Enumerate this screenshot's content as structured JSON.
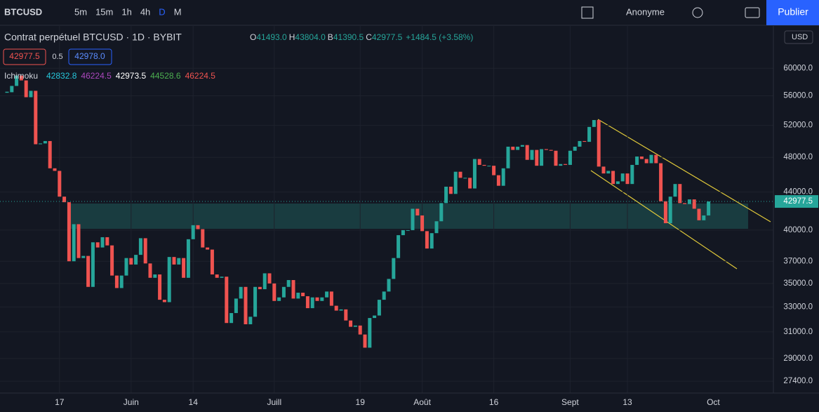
{
  "toolbar": {
    "symbol": "BTCUSD",
    "intervals": [
      "5m",
      "15m",
      "1h",
      "4h",
      "D",
      "M"
    ],
    "user": "Anonyme",
    "publish": "Publier"
  },
  "legend": {
    "title": "Contrat perpétuel BTCUSD · 1D · BYBIT",
    "ohlc": [
      {
        "k": "O",
        "v": "41493.0"
      },
      {
        "k": "H",
        "v": "43804.0"
      },
      {
        "k": "B",
        "v": "41390.5"
      },
      {
        "k": "C",
        "v": "42977.5"
      }
    ],
    "change": "+1484.5 (+3.58%)",
    "sell": "42977.5",
    "spread": "0.5",
    "buy": "42978.0",
    "indicator": "Ichimoku",
    "indicator_values": [
      "42832.8",
      "46224.5",
      "42973.5",
      "44528.6",
      "46224.5"
    ],
    "currency": "USD"
  },
  "chart_data": {
    "type": "candlestick",
    "log": true,
    "up_color": "#26a69a",
    "down_color": "#ef5350",
    "categories": [
      null,
      null,
      null,
      null,
      null,
      null,
      null,
      null,
      null,
      null,
      null,
      "17",
      null,
      null,
      null,
      null,
      null,
      null,
      null,
      null,
      null,
      null,
      null,
      null,
      null,
      null,
      "Juin",
      null,
      null,
      null,
      null,
      null,
      null,
      null,
      null,
      null,
      null,
      null,
      null,
      "14",
      null,
      null,
      null,
      null,
      null,
      null,
      null,
      null,
      null,
      null,
      null,
      null,
      null,
      null,
      null,
      null,
      "Juill",
      null,
      null,
      null,
      null,
      null,
      null,
      null,
      null,
      null,
      null,
      null,
      null,
      null,
      null,
      null,
      null,
      null,
      "19",
      null,
      null,
      null,
      null,
      null,
      null,
      null,
      null,
      null,
      null,
      null,
      null,
      "Août",
      null,
      null,
      null,
      null,
      null,
      null,
      null,
      null,
      null,
      null,
      null,
      null,
      null,
      null,
      "16",
      null,
      null,
      null,
      null,
      null,
      null,
      null,
      null,
      null,
      null,
      null,
      null,
      null,
      null,
      null,
      "Sept",
      null,
      null,
      null,
      null,
      null,
      null,
      null,
      null,
      null,
      null,
      null,
      "13",
      null,
      null,
      null,
      null,
      null,
      null,
      null,
      null,
      null,
      null,
      null,
      null,
      null,
      null,
      null,
      null,
      null
    ],
    "x_end_label": "Oct",
    "close": [
      56500,
      57400,
      58900,
      58200,
      55800,
      56700,
      49600,
      49700,
      50000,
      46700,
      46400,
      43500,
      42900,
      37000,
      40600,
      37300,
      37500,
      34700,
      38800,
      38300,
      39300,
      38500,
      35700,
      34600,
      35700,
      37300,
      36700,
      37600,
      39200,
      36800,
      35500,
      35800,
      33600,
      33400,
      37400,
      36700,
      37300,
      35500,
      39100,
      40500,
      40100,
      38300,
      38100,
      35800,
      35500,
      35600,
      31700,
      32500,
      33700,
      34700,
      31600,
      32200,
      34700,
      34500,
      35900,
      35000,
      33500,
      33800,
      34700,
      35300,
      33700,
      34200,
      33900,
      32900,
      33800,
      33500,
      33800,
      34300,
      33100,
      32700,
      32800,
      31900,
      31400,
      31500,
      30800,
      29800,
      32100,
      32300,
      33600,
      34300,
      35400,
      37300,
      39500,
      40000,
      40000,
      42200,
      41500,
      39900,
      38200,
      39700,
      40900,
      42800,
      44600,
      43800,
      46300,
      45600,
      45600,
      44400,
      47800,
      47100,
      47000,
      47000,
      45900,
      44700,
      46700,
      49300,
      48900,
      49300,
      49500,
      47700,
      48900,
      47000,
      49000,
      48900,
      48800,
      47000,
      47200,
      47100,
      48800,
      49300,
      50000,
      49900,
      51800,
      52700,
      46900,
      46100,
      46400,
      44900,
      45200,
      46100,
      44900,
      47100,
      48100,
      47800,
      47300,
      48300,
      47300,
      43000,
      40700,
      43500,
      44900,
      42800,
      42700,
      43200,
      42200,
      41000,
      41500,
      42977.5
    ],
    "last_price": 42977.5,
    "ylim": [
      26600,
      66700
    ],
    "yticks": [
      {
        "value": 60000,
        "label": "60000.0"
      },
      {
        "value": 56000,
        "label": "56000.0"
      },
      {
        "value": 52000,
        "label": "52000.0"
      },
      {
        "value": 48000,
        "label": "48000.0"
      },
      {
        "value": 44000,
        "label": "44000.0"
      },
      {
        "value": 40000,
        "label": "40000.0"
      },
      {
        "value": 37000,
        "label": "37000.0"
      },
      {
        "value": 35000,
        "label": "35000.0"
      },
      {
        "value": 33000,
        "label": "33000.0"
      },
      {
        "value": 31000,
        "label": "31000.0"
      },
      {
        "value": 29000,
        "label": "29000.0"
      },
      {
        "value": 27400,
        "label": "27400.0"
      }
    ],
    "grid": true
  }
}
